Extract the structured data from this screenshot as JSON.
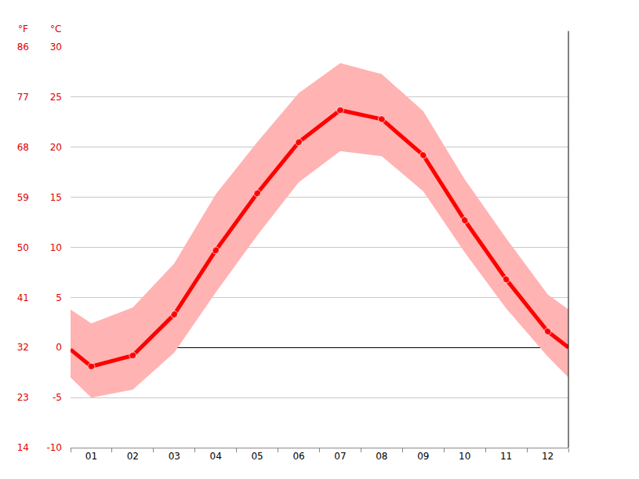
{
  "chart_data": {
    "type": "line",
    "x": [
      0.5,
      1,
      2,
      3,
      4,
      5,
      6,
      7,
      8,
      9,
      10,
      11,
      12,
      12.5
    ],
    "xlim": [
      0.5,
      12.5
    ],
    "xticks": [
      {
        "value": 1,
        "label": "01"
      },
      {
        "value": 2,
        "label": "02"
      },
      {
        "value": 3,
        "label": "03"
      },
      {
        "value": 4,
        "label": "04"
      },
      {
        "value": 5,
        "label": "05"
      },
      {
        "value": 6,
        "label": "06"
      },
      {
        "value": 7,
        "label": "07"
      },
      {
        "value": 8,
        "label": "08"
      },
      {
        "value": 9,
        "label": "09"
      },
      {
        "value": 10,
        "label": "10"
      },
      {
        "value": 11,
        "label": "11"
      },
      {
        "value": 12,
        "label": "12"
      }
    ],
    "ylabel": "°C",
    "ylim": [
      -10,
      30
    ],
    "yticks": [
      -10,
      -5,
      0,
      5,
      10,
      15,
      20,
      25,
      30
    ],
    "y2label": "°F",
    "y2lim": [
      14,
      86
    ],
    "y2ticks": [
      14,
      23,
      32,
      41,
      50,
      59,
      68,
      77,
      86
    ],
    "grid": true,
    "series": [
      {
        "type": "band",
        "color": "#ffb3b3",
        "upper": [
          3.8,
          2.4,
          4.0,
          8.4,
          15.3,
          20.5,
          25.4,
          28.4,
          27.3,
          23.6,
          16.8,
          10.9,
          5.3,
          3.8
        ],
        "lower": [
          -3.0,
          -5.0,
          -4.2,
          -0.5,
          5.5,
          11.2,
          16.5,
          19.6,
          19.1,
          15.6,
          9.5,
          3.9,
          -0.9,
          -3.0
        ]
      },
      {
        "type": "line",
        "color": "#ff0000",
        "marker": "circle",
        "values": [
          -0.2,
          -1.9,
          -0.8,
          3.3,
          9.7,
          15.4,
          20.5,
          23.7,
          22.8,
          19.2,
          12.7,
          6.8,
          1.6,
          0.0
        ]
      }
    ]
  }
}
